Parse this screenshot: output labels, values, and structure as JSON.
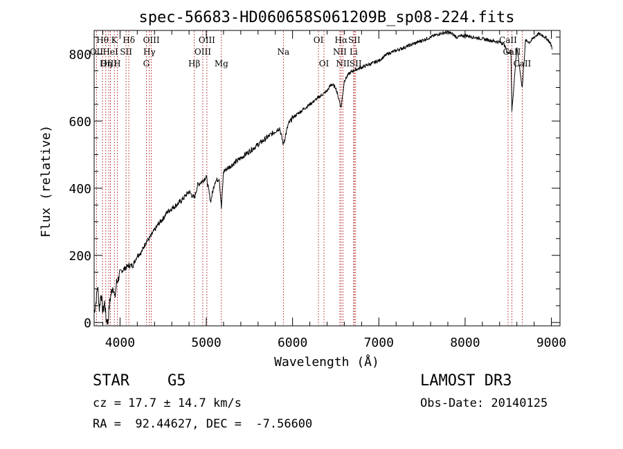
{
  "chart_data": {
    "type": "line",
    "title": "spec-56683-HD060658S061209B_sp08-224.fits",
    "xlabel": "Wavelength (Å)",
    "ylabel": "Flux (relative)",
    "xlim": [
      3700,
      9100
    ],
    "ylim": [
      -10,
      870
    ],
    "xticks": [
      "4000",
      "5000",
      "6000",
      "7000",
      "8000",
      "9000"
    ],
    "xtick_values": [
      4000,
      5000,
      6000,
      7000,
      8000,
      9000
    ],
    "yticks": [
      "0",
      "200",
      "400",
      "600",
      "800"
    ],
    "ytick_values": [
      0,
      200,
      400,
      600,
      800
    ],
    "grid": false,
    "series": [
      {
        "name": "flux",
        "x": [
          3700,
          3720,
          3740,
          3760,
          3780,
          3800,
          3820,
          3840,
          3860,
          3880,
          3900,
          3920,
          3940,
          3960,
          3980,
          4000,
          4050,
          4100,
          4150,
          4200,
          4250,
          4300,
          4340,
          4400,
          4450,
          4500,
          4550,
          4600,
          4650,
          4700,
          4750,
          4800,
          4861,
          4900,
          4950,
          5000,
          5050,
          5100,
          5150,
          5175,
          5200,
          5300,
          5400,
          5500,
          5600,
          5700,
          5800,
          5850,
          5893,
          5950,
          6000,
          6100,
          6200,
          6300,
          6400,
          6450,
          6500,
          6563,
          6600,
          6650,
          6700,
          6800,
          6900,
          7000,
          7100,
          7200,
          7300,
          7400,
          7500,
          7600,
          7700,
          7800,
          7850,
          7900,
          8000,
          8100,
          8200,
          8300,
          8400,
          8450,
          8498,
          8530,
          8542,
          8600,
          8662,
          8700,
          8750,
          8800,
          8850,
          8900,
          8950,
          8980,
          9000,
          9010
        ],
        "values": [
          30,
          60,
          110,
          40,
          90,
          30,
          60,
          10,
          0,
          60,
          90,
          110,
          70,
          120,
          130,
          150,
          160,
          170,
          170,
          200,
          210,
          240,
          250,
          275,
          295,
          310,
          330,
          340,
          350,
          360,
          375,
          390,
          370,
          410,
          420,
          435,
          360,
          420,
          430,
          340,
          450,
          470,
          490,
          510,
          530,
          550,
          570,
          580,
          530,
          590,
          610,
          630,
          650,
          670,
          690,
          710,
          700,
          640,
          720,
          740,
          750,
          760,
          770,
          780,
          800,
          810,
          820,
          830,
          840,
          850,
          860,
          865,
          860,
          850,
          855,
          850,
          845,
          840,
          835,
          830,
          800,
          815,
          630,
          820,
          700,
          840,
          835,
          850,
          860,
          855,
          845,
          835,
          825,
          815
        ]
      }
    ],
    "lines": [
      {
        "label": "Hθ",
        "x": 3797,
        "row": 0
      },
      {
        "label": "OII",
        "x": 3727,
        "row": 1
      },
      {
        "label": "OIII",
        "x": 3869,
        "row": 2
      },
      {
        "label": "K",
        "x": 3934,
        "row": 0
      },
      {
        "label": "H",
        "x": 3968,
        "row": 2
      },
      {
        "label": "HeI",
        "x": 3889,
        "row": 1
      },
      {
        "label": "Hη",
        "x": 3835,
        "row": 2
      },
      {
        "label": "SII",
        "x": 4070,
        "row": 1
      },
      {
        "label": "Hδ",
        "x": 4102,
        "row": 0
      },
      {
        "label": "OIII",
        "x": 4363,
        "row": 0
      },
      {
        "label": "Hγ",
        "x": 4340,
        "row": 1
      },
      {
        "label": "G",
        "x": 4305,
        "row": 2
      },
      {
        "label": "OIII",
        "x": 5007,
        "row": 0
      },
      {
        "label": "OIII",
        "x": 4959,
        "row": 1
      },
      {
        "label": "Hβ",
        "x": 4861,
        "row": 2
      },
      {
        "label": "Mg",
        "x": 5175,
        "row": 2
      },
      {
        "label": "Na",
        "x": 5893,
        "row": 1
      },
      {
        "label": "OI",
        "x": 6300,
        "row": 0
      },
      {
        "label": "OI",
        "x": 6364,
        "row": 2
      },
      {
        "label": "Hα",
        "x": 6563,
        "row": 0
      },
      {
        "label": "SII",
        "x": 6716,
        "row": 0
      },
      {
        "label": "NII",
        "x": 6548,
        "row": 1
      },
      {
        "label": "Li",
        "x": 6708,
        "row": 1
      },
      {
        "label": "NII",
        "x": 6583,
        "row": 2
      },
      {
        "label": "SII",
        "x": 6731,
        "row": 2
      },
      {
        "label": "CaII",
        "x": 8498,
        "row": 0
      },
      {
        "label": "CaII",
        "x": 8542,
        "row": 1
      },
      {
        "label": "CaII",
        "x": 8662,
        "row": 2
      }
    ]
  },
  "info": {
    "class_label": "STAR",
    "subclass": "G5",
    "cz": "cz = 17.7 ± 14.7 km/s",
    "radec": "RA =  92.44627, DEC =  -7.56600",
    "survey": "LAMOST DR3",
    "obs_date": "Obs-Date: 20140125"
  }
}
